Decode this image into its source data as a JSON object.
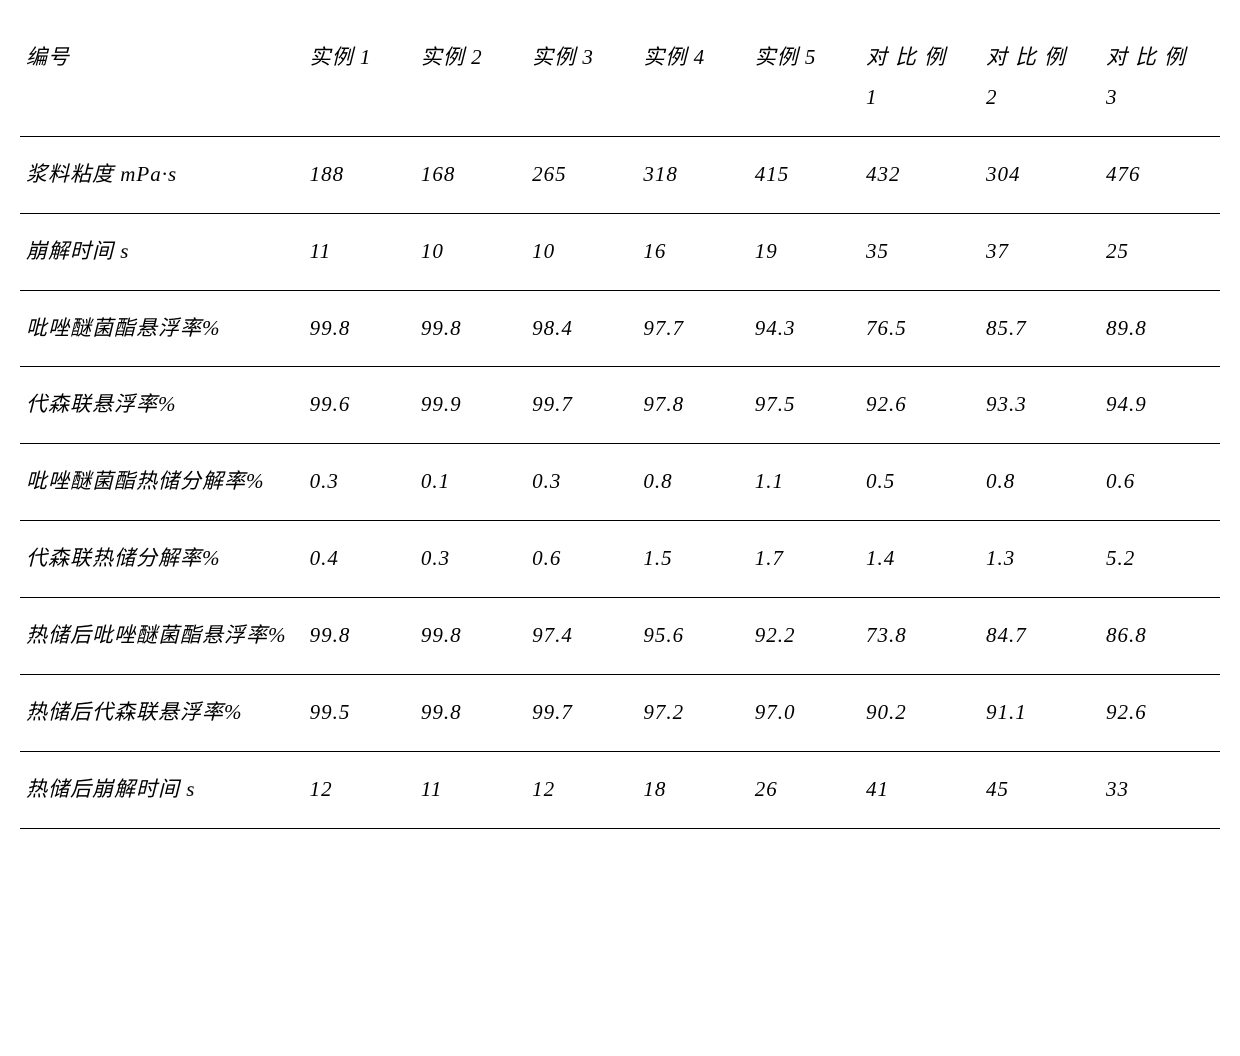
{
  "table": {
    "columns": [
      {
        "label": "编号",
        "sub": "",
        "class": "col-label"
      },
      {
        "label": "实例 1",
        "sub": "",
        "class": "col-data"
      },
      {
        "label": "实例 2",
        "sub": "",
        "class": "col-data"
      },
      {
        "label": "实例 3",
        "sub": "",
        "class": "col-data"
      },
      {
        "label": "实例 4",
        "sub": "",
        "class": "col-data"
      },
      {
        "label": "实例 5",
        "sub": "",
        "class": "col-data"
      },
      {
        "label": "对比例",
        "sub": "1",
        "class": "col-comp",
        "spaced": true
      },
      {
        "label": "对比例",
        "sub": "2",
        "class": "col-comp",
        "spaced": true
      },
      {
        "label": "对比例",
        "sub": "3",
        "class": "col-comp",
        "spaced": true
      }
    ],
    "rows": [
      {
        "label": "浆料粘度 mPa·s",
        "cells": [
          "188",
          "168",
          "265",
          "318",
          "415",
          "432",
          "304",
          "476"
        ]
      },
      {
        "label": "崩解时间 s",
        "cells": [
          "11",
          "10",
          "10",
          "16",
          "19",
          "35",
          "37",
          "25"
        ]
      },
      {
        "label": "吡唑醚菌酯悬浮率%",
        "cells": [
          "99.8",
          "99.8",
          "98.4",
          "97.7",
          "94.3",
          "76.5",
          "85.7",
          "89.8"
        ]
      },
      {
        "label": "代森联悬浮率%",
        "cells": [
          "99.6",
          "99.9",
          "99.7",
          "97.8",
          "97.5",
          "92.6",
          "93.3",
          "94.9"
        ]
      },
      {
        "label": "吡唑醚菌酯热储分解率%",
        "cells": [
          "0.3",
          "0.1",
          "0.3",
          "0.8",
          "1.1",
          "0.5",
          "0.8",
          "0.6"
        ]
      },
      {
        "label": "代森联热储分解率%",
        "cells": [
          "0.4",
          "0.3",
          "0.6",
          "1.5",
          "1.7",
          "1.4",
          "1.3",
          "5.2"
        ]
      },
      {
        "label": "热储后吡唑醚菌酯悬浮率%",
        "cells": [
          "99.8",
          "99.8",
          "97.4",
          "95.6",
          "92.2",
          "73.8",
          "84.7",
          "86.8"
        ]
      },
      {
        "label": "热储后代森联悬浮率%",
        "cells": [
          "99.5",
          "99.8",
          "99.7",
          "97.2",
          "97.0",
          "90.2",
          "91.1",
          "92.6"
        ]
      },
      {
        "label": "热储后崩解时间 s",
        "cells": [
          "12",
          "11",
          "12",
          "18",
          "26",
          "41",
          "45",
          "33"
        ]
      }
    ],
    "font_size_pt": 21,
    "border_color": "#000000",
    "background_color": "#ffffff",
    "text_color": "#000000"
  }
}
